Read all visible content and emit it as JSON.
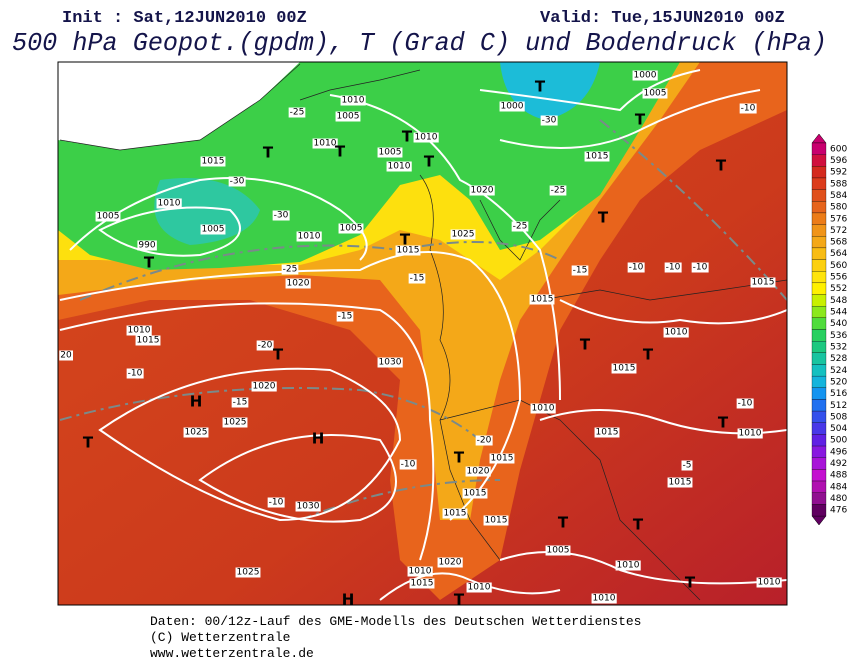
{
  "header": {
    "init": "Init : Sat,12JUN2010 00Z",
    "valid": "Valid: Tue,15JUN2010 00Z",
    "title": "500 hPa Geopot.(gpdm), T (Grad C) und Bodendruck (hPa)"
  },
  "legend": {
    "values": [
      600,
      596,
      592,
      588,
      584,
      580,
      576,
      572,
      568,
      564,
      560,
      556,
      552,
      548,
      544,
      540,
      536,
      532,
      528,
      524,
      520,
      516,
      512,
      508,
      504,
      500,
      496,
      492,
      488,
      484,
      480,
      476
    ],
    "colors": [
      "#c8006e",
      "#d0103e",
      "#d42a1e",
      "#dc3c1c",
      "#e0501c",
      "#e6641c",
      "#ec7c18",
      "#f09418",
      "#f4a818",
      "#f8bc14",
      "#fcd010",
      "#fee40c",
      "#fff000",
      "#c8f000",
      "#8ce81c",
      "#50dc3c",
      "#28d060",
      "#1cc880",
      "#18c4a0",
      "#14c0c0",
      "#14b4dc",
      "#1494f0",
      "#2070f0",
      "#3450ec",
      "#4838e8",
      "#6020e4",
      "#8818e0",
      "#a814d8",
      "#c410d0",
      "#b010b0",
      "#901090",
      "#600060"
    ]
  },
  "map": {
    "labels": [
      "1010",
      "1005",
      "-25",
      "1010",
      "T",
      "1010",
      "T",
      "1005",
      "1010",
      "T",
      "1000",
      "-30",
      "T",
      "1005",
      "1000",
      "T",
      "1015",
      "-10",
      "T",
      "1015",
      "T",
      "-30",
      "1010",
      "-30",
      "1005",
      "1010",
      "1005",
      "1020",
      "-25",
      "-25",
      "T",
      "T",
      "1015",
      "1025",
      "1005",
      "990",
      "T",
      "-25",
      "1020",
      "-15",
      "-15",
      "1015",
      "-15",
      "-10",
      "-10",
      "-10",
      "1015",
      "1010",
      "1015",
      "-20",
      "T",
      "1020",
      "1030",
      "-10",
      "H",
      "-15",
      "1025",
      "1025",
      "T",
      "H",
      "-10",
      "-20",
      "T",
      "1020",
      "1015",
      "1015",
      "1015",
      "1015",
      "-10",
      "1030",
      "1025",
      "1020",
      "1010",
      "1015",
      "1010",
      "H",
      "T",
      "1005",
      "T",
      "T",
      "1010",
      "T",
      "1010",
      "1010",
      "1015",
      "-5",
      "T",
      "1010",
      "-10",
      "T",
      "1010",
      "1010",
      "1015",
      "T",
      "1015",
      "20"
    ]
  },
  "footer": {
    "lines": [
      "Daten: 00/12z-Lauf des GME-Modells des Deutschen Wetterdienstes",
      "(C) Wetterzentrale",
      "www.wetterzentrale.de"
    ]
  }
}
